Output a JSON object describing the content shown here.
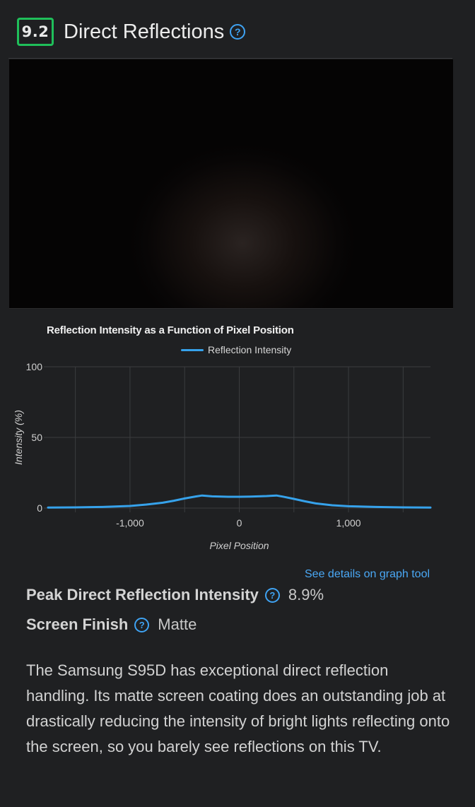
{
  "header": {
    "score": "9.2",
    "title": "Direct Reflections",
    "help_glyph": "?"
  },
  "photo": {
    "icon": "reflection-photo"
  },
  "chart_data": {
    "type": "line",
    "title": "Reflection Intensity as a Function of Pixel Position",
    "xlabel": "Pixel Position",
    "ylabel": "Intensity (%)",
    "xlim": [
      -1750,
      1750
    ],
    "ylim": [
      0,
      100
    ],
    "x_ticks": [
      "-1,000",
      "0",
      "1,000"
    ],
    "x_tick_values": [
      -1000,
      0,
      1000
    ],
    "y_ticks": [
      "0",
      "50",
      "100"
    ],
    "y_tick_values": [
      0,
      50,
      100
    ],
    "grid": true,
    "legend": "top-center",
    "series": [
      {
        "name": "Reflection Intensity",
        "color": "#36a2eb",
        "x": [
          -1750,
          -1500,
          -1250,
          -1000,
          -850,
          -700,
          -600,
          -500,
          -400,
          -340,
          -250,
          -100,
          0,
          100,
          250,
          340,
          400,
          500,
          600,
          700,
          850,
          1000,
          1250,
          1500,
          1750
        ],
        "y": [
          0.4,
          0.5,
          0.8,
          1.5,
          2.5,
          3.8,
          5.2,
          6.8,
          8.2,
          8.9,
          8.3,
          8.0,
          8.0,
          8.1,
          8.5,
          8.9,
          8.1,
          6.5,
          4.8,
          3.3,
          2.0,
          1.3,
          0.8,
          0.5,
          0.4
        ]
      }
    ]
  },
  "details_link": "See details on graph tool",
  "specs": [
    {
      "label": "Peak Direct Reflection Intensity",
      "value": "8.9%"
    },
    {
      "label": "Screen Finish",
      "value": "Matte"
    }
  ],
  "description": "The Samsung S95D has exceptional direct reflection handling. Its matte screen coating does an outstanding job at drastically reducing the intensity of bright lights reflecting onto the screen, so you barely see reflections on this TV.",
  "colors": {
    "accent": "#3fa3f3",
    "score_border": "#1fbf5a",
    "background": "#1f2022"
  }
}
